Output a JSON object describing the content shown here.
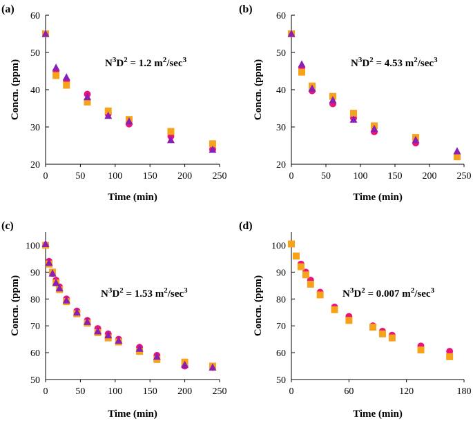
{
  "chart_data": [
    {
      "panel_label": "(a)",
      "type": "scatter",
      "xlabel": "Time (min)",
      "ylabel": "Concn. (ppm)",
      "annotation": {
        "base": "N",
        "sup1": "3",
        "mid": "D",
        "sup2": "2",
        "rest": " = 1.2 m",
        "sup3": "2",
        "rest2": "/sec",
        "sup4": "3"
      },
      "xlim": [
        0,
        250
      ],
      "ylim": [
        20,
        60
      ],
      "xticks": [
        0,
        50,
        100,
        150,
        200,
        250
      ],
      "yticks": [
        20,
        30,
        40,
        50,
        60
      ],
      "series": [
        {
          "marker": "circle",
          "color": "#e8157a",
          "x": [
            0,
            15,
            30,
            60,
            90,
            120,
            180,
            240
          ],
          "y": [
            55,
            45,
            42.5,
            38.8,
            33.5,
            30.8,
            27.5,
            24
          ]
        },
        {
          "marker": "square",
          "color": "#f7a21b",
          "x": [
            0,
            15,
            30,
            60,
            90,
            120,
            180,
            240
          ],
          "y": [
            55,
            43.8,
            41.2,
            36.7,
            34.3,
            32,
            28.8,
            25.5
          ]
        },
        {
          "marker": "triangle",
          "color": "#8a1fb5",
          "x": [
            0,
            15,
            30,
            60,
            90,
            120,
            180,
            240
          ],
          "y": [
            55,
            45.9,
            43.3,
            38,
            33,
            31.5,
            26.5,
            23.9
          ]
        }
      ]
    },
    {
      "panel_label": "(b)",
      "type": "scatter",
      "xlabel": "Time (min)",
      "ylabel": "Concn. (ppm)",
      "annotation": {
        "base": "N",
        "sup1": "3",
        "mid": "D",
        "sup2": "2",
        "rest": " = 4.53 m",
        "sup3": "2",
        "rest2": "/sec",
        "sup4": "3"
      },
      "xlim": [
        0,
        250
      ],
      "ylim": [
        20,
        60
      ],
      "xticks": [
        0,
        50,
        100,
        150,
        200,
        250
      ],
      "yticks": [
        20,
        30,
        40,
        50,
        60
      ],
      "series": [
        {
          "marker": "circle",
          "color": "#e8157a",
          "x": [
            0,
            15,
            30,
            60,
            90,
            120,
            180,
            240
          ],
          "y": [
            55,
            46,
            39.7,
            36.2,
            32.4,
            28.7,
            25.7,
            22.2
          ]
        },
        {
          "marker": "square",
          "color": "#f7a21b",
          "x": [
            0,
            15,
            30,
            60,
            90,
            120,
            180,
            240
          ],
          "y": [
            55,
            44.7,
            41,
            38.2,
            33.7,
            30.3,
            27.2,
            22
          ]
        },
        {
          "marker": "triangle",
          "color": "#8a1fb5",
          "x": [
            0,
            15,
            30,
            60,
            90,
            120,
            180,
            240
          ],
          "y": [
            55,
            46.8,
            40.3,
            37.2,
            32,
            29.5,
            26.5,
            23.5
          ]
        }
      ]
    },
    {
      "panel_label": "(c)",
      "type": "scatter",
      "xlabel": "Time (min)",
      "ylabel": "Concn. (ppm)",
      "annotation": {
        "base": "N",
        "sup1": "3",
        "mid": "D",
        "sup2": "2",
        "rest": " = 1.53 m",
        "sup3": "2",
        "rest2": "/sec",
        "sup4": "3"
      },
      "xlim": [
        0,
        250
      ],
      "ylim": [
        50,
        105
      ],
      "xticks": [
        0,
        50,
        100,
        150,
        200,
        250
      ],
      "yticks": [
        50,
        60,
        70,
        80,
        90,
        100
      ],
      "series": [
        {
          "marker": "circle",
          "color": "#e8157a",
          "x": [
            0,
            5,
            10,
            15,
            20,
            30,
            45,
            60,
            75,
            90,
            105,
            135,
            160,
            200,
            240
          ],
          "y": [
            100,
            94,
            89.5,
            87,
            84.5,
            80,
            75.5,
            72,
            69,
            67,
            65,
            62,
            59,
            55,
            54.5
          ]
        },
        {
          "marker": "square",
          "color": "#f7a21b",
          "x": [
            0,
            5,
            10,
            15,
            20,
            30,
            45,
            60,
            75,
            90,
            105,
            135,
            160,
            200,
            240
          ],
          "y": [
            100,
            93,
            90,
            86,
            83.5,
            79,
            74.5,
            71,
            67.5,
            65.5,
            64,
            60.5,
            57.5,
            56.5,
            55
          ]
        },
        {
          "marker": "triangle",
          "color": "#8a1fb5",
          "x": [
            0,
            5,
            10,
            15,
            20,
            30,
            45,
            60,
            75,
            90,
            105,
            135,
            160,
            200,
            240
          ],
          "y": [
            100.5,
            93.5,
            89.5,
            86,
            84,
            79.5,
            75,
            71.5,
            68,
            66.5,
            64.5,
            61.5,
            58.5,
            55.5,
            54.5
          ]
        }
      ]
    },
    {
      "panel_label": "(d)",
      "type": "scatter",
      "xlabel": "Time (min)",
      "ylabel": "Concn. (ppm)",
      "annotation": {
        "base": "N",
        "sup1": "3",
        "mid": "D",
        "sup2": "2",
        "rest": " = 0.007 m",
        "sup3": "2",
        "rest2": "/sec",
        "sup4": "3"
      },
      "xlim": [
        0,
        180
      ],
      "ylim": [
        50,
        105
      ],
      "xticks": [
        0,
        60,
        120,
        180
      ],
      "yticks": [
        50,
        60,
        70,
        80,
        90,
        100
      ],
      "series": [
        {
          "marker": "circle",
          "color": "#e8157a",
          "x": [
            5,
            10,
            15,
            20,
            30,
            45,
            60,
            85,
            95,
            105,
            135,
            165
          ],
          "y": [
            96,
            93,
            90,
            87,
            82.5,
            77,
            73.5,
            70,
            68,
            66.5,
            62.5,
            60.5
          ]
        },
        {
          "marker": "square",
          "color": "#f7a21b",
          "x": [
            0,
            5,
            10,
            15,
            20,
            30,
            45,
            60,
            85,
            95,
            105,
            135,
            165
          ],
          "y": [
            100.5,
            96,
            92,
            89,
            85.5,
            81.5,
            76,
            72,
            69.5,
            67,
            65.5,
            61,
            58.5
          ]
        }
      ]
    }
  ]
}
